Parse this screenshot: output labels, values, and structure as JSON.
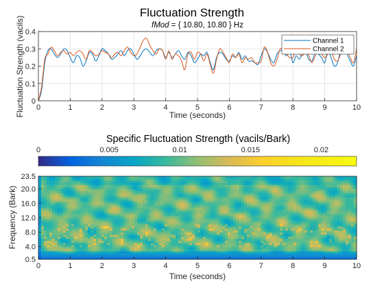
{
  "chart_data": [
    {
      "type": "line",
      "title": "Fluctuation Strength",
      "subtitle_prefix": "fMod",
      "subtitle_rest": " = { 10.80, 10.80 } Hz",
      "xlabel": "Time (seconds)",
      "ylabel": "Fluctuation Strength (vacils)",
      "xlim": [
        0,
        10
      ],
      "ylim": [
        0,
        0.4
      ],
      "xticks": [
        0,
        1,
        2,
        3,
        4,
        5,
        6,
        7,
        8,
        9,
        10
      ],
      "yticks": [
        0,
        0.1,
        0.2,
        0.3,
        0.4
      ],
      "grid": true,
      "legend_position": "top-right",
      "series": [
        {
          "name": "Channel 1",
          "color": "#0072BD",
          "x": [
            0,
            0.1,
            0.2,
            0.3,
            0.4,
            0.5,
            0.6,
            0.7,
            0.8,
            0.9,
            1.0,
            1.1,
            1.2,
            1.3,
            1.4,
            1.5,
            1.6,
            1.7,
            1.8,
            1.9,
            2.0,
            2.1,
            2.2,
            2.3,
            2.4,
            2.5,
            2.6,
            2.7,
            2.8,
            2.9,
            3.0,
            3.1,
            3.2,
            3.3,
            3.4,
            3.5,
            3.6,
            3.7,
            3.8,
            3.9,
            4.0,
            4.1,
            4.2,
            4.3,
            4.4,
            4.5,
            4.6,
            4.7,
            4.8,
            4.9,
            5.0,
            5.1,
            5.2,
            5.3,
            5.4,
            5.5,
            5.6,
            5.7,
            5.8,
            5.9,
            6.0,
            6.1,
            6.2,
            6.3,
            6.4,
            6.5,
            6.6,
            6.7,
            6.8,
            6.9,
            7.0,
            7.1,
            7.2,
            7.3,
            7.4,
            7.5,
            7.6,
            7.7,
            7.8,
            7.9,
            8.0,
            8.1,
            8.2,
            8.3,
            8.4,
            8.5,
            8.6,
            8.7,
            8.8,
            8.9,
            9.0,
            9.1,
            9.2,
            9.3,
            9.4,
            9.5,
            9.6,
            9.7,
            9.8,
            9.9,
            10.0
          ],
          "values": [
            0.0,
            0.06,
            0.22,
            0.29,
            0.3,
            0.27,
            0.25,
            0.27,
            0.3,
            0.29,
            0.25,
            0.22,
            0.26,
            0.25,
            0.2,
            0.23,
            0.28,
            0.27,
            0.23,
            0.26,
            0.3,
            0.29,
            0.27,
            0.24,
            0.25,
            0.27,
            0.29,
            0.26,
            0.29,
            0.3,
            0.27,
            0.24,
            0.26,
            0.29,
            0.3,
            0.28,
            0.26,
            0.29,
            0.3,
            0.29,
            0.25,
            0.28,
            0.25,
            0.27,
            0.29,
            0.26,
            0.24,
            0.28,
            0.26,
            0.22,
            0.24,
            0.27,
            0.26,
            0.28,
            0.22,
            0.18,
            0.25,
            0.28,
            0.27,
            0.24,
            0.23,
            0.26,
            0.25,
            0.28,
            0.24,
            0.26,
            0.23,
            0.23,
            0.22,
            0.21,
            0.26,
            0.3,
            0.28,
            0.24,
            0.22,
            0.27,
            0.29,
            0.28,
            0.26,
            0.29,
            0.22,
            0.26,
            0.24,
            0.27,
            0.28,
            0.24,
            0.23,
            0.28,
            0.27,
            0.25,
            0.22,
            0.29,
            0.25,
            0.2,
            0.22,
            0.29,
            0.31,
            0.27,
            0.23,
            0.2,
            0.26
          ]
        },
        {
          "name": "Channel 2",
          "color": "#D95319",
          "x": [
            0,
            0.1,
            0.2,
            0.3,
            0.4,
            0.5,
            0.6,
            0.7,
            0.8,
            0.9,
            1.0,
            1.1,
            1.2,
            1.3,
            1.4,
            1.5,
            1.6,
            1.7,
            1.8,
            1.9,
            2.0,
            2.1,
            2.2,
            2.3,
            2.4,
            2.5,
            2.6,
            2.7,
            2.8,
            2.9,
            3.0,
            3.1,
            3.2,
            3.3,
            3.4,
            3.5,
            3.6,
            3.7,
            3.8,
            3.9,
            4.0,
            4.1,
            4.2,
            4.3,
            4.4,
            4.5,
            4.6,
            4.7,
            4.8,
            4.9,
            5.0,
            5.1,
            5.2,
            5.3,
            5.4,
            5.5,
            5.6,
            5.7,
            5.8,
            5.9,
            6.0,
            6.1,
            6.2,
            6.3,
            6.4,
            6.5,
            6.6,
            6.7,
            6.8,
            6.9,
            7.0,
            7.1,
            7.2,
            7.3,
            7.4,
            7.5,
            7.6,
            7.7,
            7.8,
            7.9,
            8.0,
            8.1,
            8.2,
            8.3,
            8.4,
            8.5,
            8.6,
            8.7,
            8.8,
            8.9,
            9.0,
            9.1,
            9.2,
            9.3,
            9.4,
            9.5,
            9.6,
            9.7,
            9.8,
            9.9,
            10.0
          ],
          "values": [
            0.0,
            0.08,
            0.24,
            0.27,
            0.31,
            0.29,
            0.26,
            0.28,
            0.29,
            0.27,
            0.28,
            0.26,
            0.28,
            0.29,
            0.27,
            0.24,
            0.29,
            0.28,
            0.26,
            0.27,
            0.29,
            0.28,
            0.27,
            0.25,
            0.27,
            0.28,
            0.26,
            0.29,
            0.31,
            0.28,
            0.26,
            0.27,
            0.31,
            0.35,
            0.36,
            0.32,
            0.29,
            0.27,
            0.3,
            0.29,
            0.24,
            0.29,
            0.24,
            0.27,
            0.26,
            0.23,
            0.18,
            0.27,
            0.28,
            0.24,
            0.28,
            0.27,
            0.23,
            0.27,
            0.21,
            0.16,
            0.24,
            0.3,
            0.28,
            0.25,
            0.22,
            0.27,
            0.25,
            0.27,
            0.22,
            0.25,
            0.24,
            0.25,
            0.22,
            0.22,
            0.23,
            0.31,
            0.28,
            0.22,
            0.2,
            0.24,
            0.3,
            0.29,
            0.27,
            0.25,
            0.25,
            0.3,
            0.27,
            0.26,
            0.28,
            0.26,
            0.22,
            0.26,
            0.29,
            0.27,
            0.25,
            0.27,
            0.29,
            0.24,
            0.23,
            0.27,
            0.31,
            0.29,
            0.25,
            0.22,
            0.3
          ]
        }
      ]
    },
    {
      "type": "heatmap",
      "title": "Specific Fluctuation Strength (vacils/Bark)",
      "xlabel": "Time (seconds)",
      "ylabel": "Frequency (Bark)",
      "xlim": [
        0,
        10
      ],
      "ylim": [
        0.5,
        23.5
      ],
      "xticks": [
        0,
        1,
        2,
        3,
        4,
        5,
        6,
        7,
        8,
        9,
        10
      ],
      "yticks": [
        0.5,
        4.0,
        8.0,
        12.0,
        16.0,
        20.0,
        23.5
      ],
      "ytick_labels": [
        "0.5",
        "4.0",
        "8.0",
        "12.0",
        "16.0",
        "20.0",
        "23.5"
      ],
      "colorbar": {
        "position": "top",
        "range": [
          0,
          0.0225
        ],
        "ticks": [
          0,
          0.005,
          0.01,
          0.015,
          0.02
        ],
        "tick_labels": [
          "0",
          "0.005",
          "0.01",
          "0.015",
          "0.02"
        ],
        "colormap": "parula"
      }
    }
  ]
}
